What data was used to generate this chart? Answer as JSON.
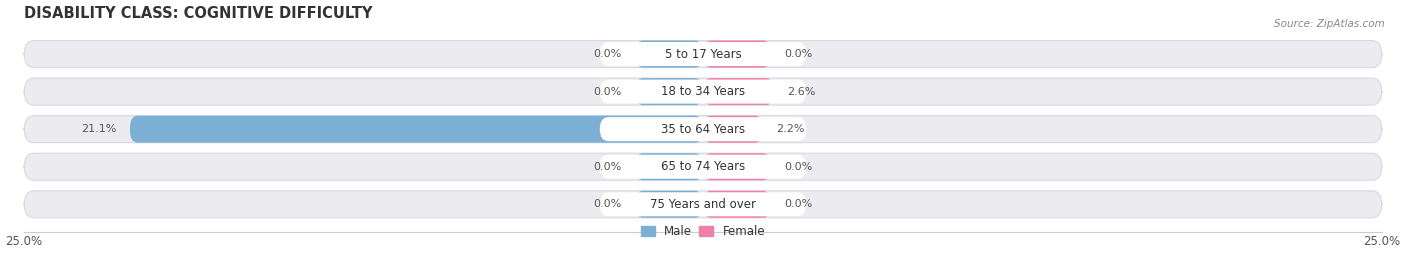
{
  "title": "DISABILITY CLASS: COGNITIVE DIFFICULTY",
  "source": "Source: ZipAtlas.com",
  "labels": [
    "5 to 17 Years",
    "18 to 34 Years",
    "35 to 64 Years",
    "65 to 74 Years",
    "75 Years and over"
  ],
  "male_values": [
    0.0,
    0.0,
    21.1,
    0.0,
    0.0
  ],
  "female_values": [
    0.0,
    2.6,
    2.2,
    0.0,
    0.0
  ],
  "male_color": "#7bafd4",
  "female_color": "#f080a8",
  "bar_bg_color": "#ebebf0",
  "bar_bg_border": "#d8d8e0",
  "label_pill_color": "#ffffff",
  "axis_limit": 25.0,
  "male_label": "Male",
  "female_label": "Female",
  "bg_color": "#ffffff",
  "bar_height": 0.72,
  "title_fontsize": 10.5,
  "label_fontsize": 8.5,
  "value_fontsize": 8.0,
  "tick_fontsize": 8.5,
  "default_bar_stub": 2.5
}
